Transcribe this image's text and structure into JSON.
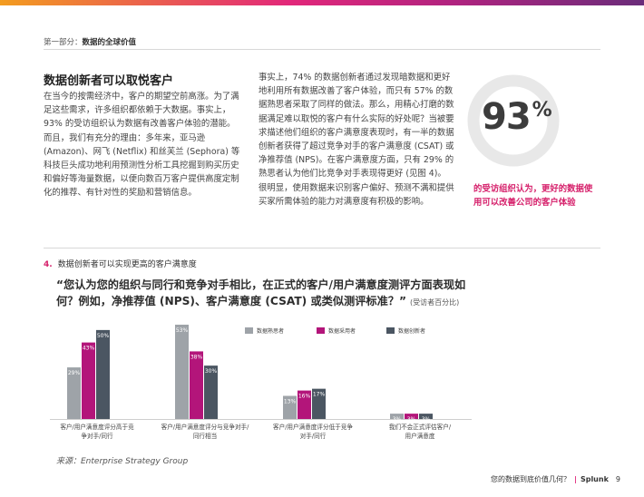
{
  "header": {
    "section_label": "第一部分：",
    "section_title": "数据的全球价值"
  },
  "article": {
    "title": "数据创新者可以取悦客户",
    "col1": "在当今的按需经济中，客户的期望空前高涨。为了满足这些需求，许多组织都依赖于大数据。事实上，93% 的受访组织认为数据有改善客户体验的潜能。而且，我们有充分的理由：多年来，亚马逊 (Amazon)、网飞 (Netflix) 和丝芙兰 (Sephora) 等科技巨头成功地利用预测性分析工具挖掘到购买历史和偏好等海量数据，以便向数百万客户提供高度定制化的推荐、有针对性的奖励和营销信息。",
    "col2": "事实上，74% 的数据创新者通过发现暗数据和更好地利用所有数据改善了客户体验，而只有 57% 的数据熟思者采取了同样的做法。那么，用精心打磨的数据满足难以取悦的客户有什么实际的好处呢？当被要求描述他们组织的客户满意度表现时，有一半的数据创新者获得了超过竞争对手的客户满意度 (CSAT) 或净推荐值 (NPS)。在客户满意度方面，只有 29% 的熟思者认为他们比竞争对手表现得更好 (见图 4)。很明显，使用数据来识别客户偏好、预测不满和提供买家所需体验的能力对满意度有积极的影响。"
  },
  "stat": {
    "value": "93",
    "unit": "%",
    "fraction": 0.93,
    "caption": "的受访组织认为，更好的数据使用可以改善公司的客户体验",
    "ring_color": "#e8e8e8"
  },
  "figure": {
    "number": "4.",
    "title": "数据创新者可以实现更高的客户满意度",
    "question": "“您认为您的组织与同行和竞争对手相比，在正式的客户/用户满意度测评方面表现如何？例如，净推荐值 (NPS)、客户满意度 (CSAT) 或类似测评标准？”",
    "question_note": "(受访者百分比)",
    "source": "来源：Enterprise Strategy Group"
  },
  "chart_data": {
    "type": "bar",
    "categories": [
      "客户/用户满意度评分高于竞争对手/同行",
      "客户/用户满意度评分与竞争对手/同行相当",
      "客户/用户满意度评分低于竞争对手/同行",
      "我们不会正式评估客户/用户满意度"
    ],
    "series": [
      {
        "name": "数据熟思者",
        "color": "#9ea3a8",
        "values": [
          29,
          53,
          13,
          3
        ]
      },
      {
        "name": "数据采用者",
        "color": "#b3157a",
        "values": [
          43,
          38,
          16,
          3
        ]
      },
      {
        "name": "数据创新者",
        "color": "#4b5662",
        "values": [
          50,
          30,
          17,
          3
        ]
      }
    ],
    "value_suffix": "%",
    "ylim": [
      0,
      53
    ]
  },
  "footer": {
    "question": "您的数据到底价值几何？",
    "separator": "|",
    "brand": "Splunk",
    "page": "9"
  }
}
